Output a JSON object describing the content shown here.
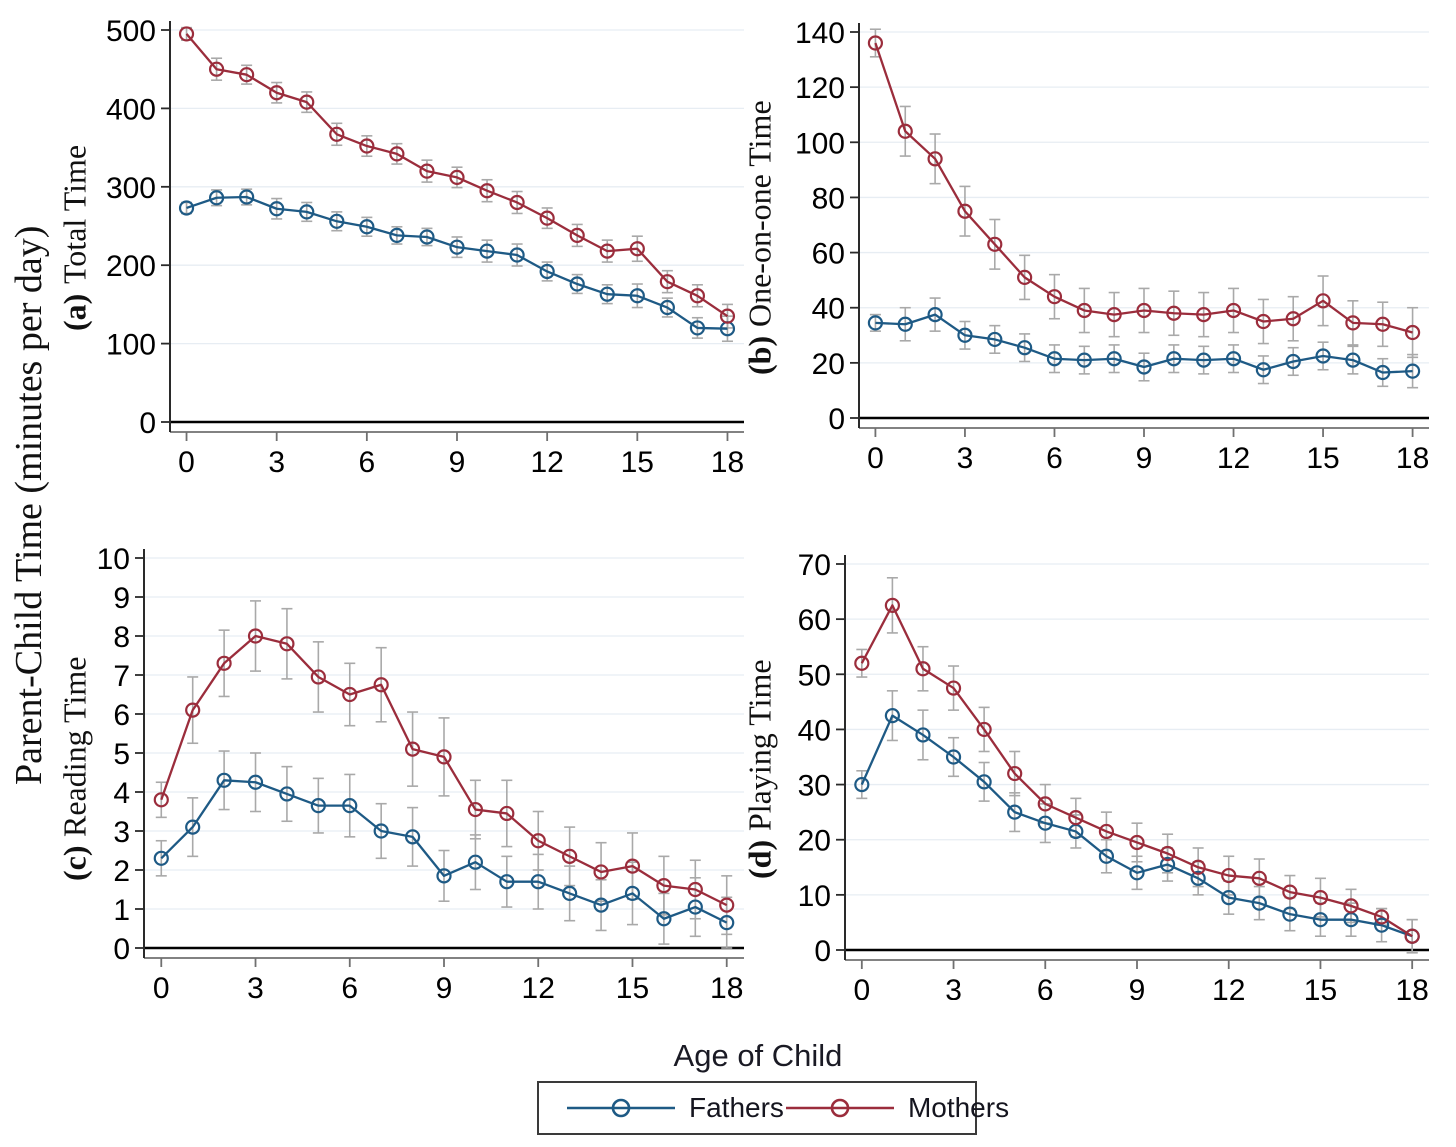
{
  "figure": {
    "outer_ylabel": "Parent-Child Time (minutes per day)",
    "xlabel": "Age of Child",
    "colors": {
      "fathers": "#1e5a85",
      "mothers": "#9b2d3c",
      "error_bar": "#a9a9a9",
      "grid": "#e7edf3",
      "zero_line": "#000000",
      "y_spine": "#2a2a2a",
      "x_spine": "#707070",
      "tick_text": "#000000"
    },
    "legend": [
      {
        "label": "Fathers",
        "series": "fathers"
      },
      {
        "label": "Mothers",
        "series": "mothers"
      }
    ],
    "legend_position": "bottom"
  },
  "chart_data": [
    {
      "type": "line",
      "panel": "a",
      "prefix": "(a)",
      "title": "Total Time",
      "x": [
        0,
        1,
        2,
        3,
        4,
        5,
        6,
        7,
        8,
        9,
        10,
        11,
        12,
        13,
        14,
        15,
        16,
        17,
        18
      ],
      "xticks": [
        0,
        3,
        6,
        9,
        12,
        15,
        18
      ],
      "ylim": [
        0,
        500
      ],
      "yticks": [
        0,
        100,
        200,
        300,
        400,
        500
      ],
      "grid": true,
      "series": [
        {
          "name": "Fathers",
          "values": [
            273,
            286,
            287,
            272,
            268,
            256,
            249,
            238,
            236,
            223,
            218,
            213,
            192,
            176,
            163,
            161,
            146,
            120,
            119
          ],
          "err": [
            7,
            10,
            10,
            13,
            12,
            12,
            12,
            11,
            11,
            13,
            14,
            14,
            12,
            12,
            12,
            15,
            12,
            13,
            16
          ]
        },
        {
          "name": "Mothers",
          "values": [
            495,
            450,
            443,
            420,
            408,
            367,
            352,
            342,
            320,
            312,
            295,
            280,
            260,
            238,
            218,
            221,
            179,
            161,
            135
          ],
          "err": [
            8,
            14,
            12,
            13,
            13,
            14,
            13,
            13,
            14,
            13,
            14,
            14,
            13,
            14,
            14,
            16,
            14,
            14,
            15
          ]
        }
      ]
    },
    {
      "type": "line",
      "panel": "b",
      "prefix": "(b)",
      "title": "One-on-one Time",
      "x": [
        0,
        1,
        2,
        3,
        4,
        5,
        6,
        7,
        8,
        9,
        10,
        11,
        12,
        13,
        14,
        15,
        16,
        17,
        18
      ],
      "xticks": [
        0,
        3,
        6,
        9,
        12,
        15,
        18
      ],
      "ylim": [
        0,
        140
      ],
      "yticks": [
        0,
        20,
        40,
        60,
        80,
        100,
        120,
        140
      ],
      "grid": true,
      "series": [
        {
          "name": "Fathers",
          "values": [
            34.5,
            34,
            37.5,
            30,
            28.5,
            25.5,
            21.5,
            21,
            21.5,
            18.5,
            21.5,
            21,
            21.5,
            17.5,
            20.5,
            22.5,
            21,
            16.5,
            17
          ],
          "err": [
            3,
            6,
            6,
            5,
            5,
            5,
            5,
            5,
            5,
            5,
            5,
            5,
            5,
            5,
            5,
            5,
            5,
            5,
            6
          ]
        },
        {
          "name": "Mothers",
          "values": [
            136,
            104,
            94,
            75,
            63,
            51,
            44,
            39,
            37.5,
            39,
            38,
            37.5,
            39,
            35,
            36,
            42.5,
            34.5,
            34,
            31
          ],
          "err": [
            5,
            9,
            9,
            9,
            9,
            8,
            8,
            8,
            8,
            8,
            8,
            8,
            8,
            8,
            8,
            9,
            8,
            8,
            9
          ]
        }
      ]
    },
    {
      "type": "line",
      "panel": "c",
      "prefix": "(c)",
      "title": "Reading Time",
      "x": [
        0,
        1,
        2,
        3,
        4,
        5,
        6,
        7,
        8,
        9,
        10,
        11,
        12,
        13,
        14,
        15,
        16,
        17,
        18
      ],
      "xticks": [
        0,
        3,
        6,
        9,
        12,
        15,
        18
      ],
      "ylim": [
        0,
        10
      ],
      "yticks": [
        0,
        1,
        2,
        3,
        4,
        5,
        6,
        7,
        8,
        9,
        10
      ],
      "grid": true,
      "series": [
        {
          "name": "Fathers",
          "values": [
            2.3,
            3.1,
            4.3,
            4.25,
            3.95,
            3.65,
            3.65,
            3,
            2.85,
            1.85,
            2.2,
            1.7,
            1.7,
            1.4,
            1.1,
            1.4,
            0.75,
            1.05,
            0.65
          ],
          "err": [
            0.45,
            0.75,
            0.75,
            0.75,
            0.7,
            0.7,
            0.8,
            0.7,
            0.75,
            0.65,
            0.7,
            0.65,
            0.7,
            0.7,
            0.65,
            0.8,
            0.65,
            0.75,
            0.65
          ]
        },
        {
          "name": "Mothers",
          "values": [
            3.8,
            6.1,
            7.3,
            8,
            7.8,
            6.95,
            6.5,
            6.75,
            5.1,
            4.9,
            3.55,
            3.45,
            2.75,
            2.35,
            1.95,
            2.1,
            1.6,
            1.5,
            1.1
          ],
          "err": [
            0.45,
            0.85,
            0.85,
            0.9,
            0.9,
            0.9,
            0.8,
            0.95,
            0.95,
            1,
            0.75,
            0.85,
            0.75,
            0.75,
            0.75,
            0.85,
            0.75,
            0.75,
            0.75
          ]
        }
      ]
    },
    {
      "type": "line",
      "panel": "d",
      "prefix": "(d)",
      "title": "Playing Time",
      "x": [
        0,
        1,
        2,
        3,
        4,
        5,
        6,
        7,
        8,
        9,
        10,
        11,
        12,
        13,
        14,
        15,
        16,
        17,
        18
      ],
      "xticks": [
        0,
        3,
        6,
        9,
        12,
        15,
        18
      ],
      "ylim": [
        0,
        70
      ],
      "yticks": [
        0,
        10,
        20,
        30,
        40,
        50,
        60,
        70
      ],
      "grid": true,
      "series": [
        {
          "name": "Fathers",
          "values": [
            30,
            42.5,
            39,
            35,
            30.5,
            25,
            23,
            21.5,
            17,
            14,
            15.5,
            13,
            9.5,
            8.5,
            6.5,
            5.5,
            5.5,
            4.5,
            2.5
          ],
          "err": [
            2.5,
            4.5,
            4.5,
            3.5,
            3.5,
            3.5,
            3.5,
            3,
            3,
            3,
            3,
            3,
            3,
            3,
            3,
            3,
            3,
            3,
            3
          ]
        },
        {
          "name": "Mothers",
          "values": [
            52,
            62.5,
            51,
            47.5,
            40,
            32,
            26.5,
            24,
            21.5,
            19.5,
            17.5,
            15,
            13.5,
            13,
            10.5,
            9.5,
            8,
            6,
            2.5
          ],
          "err": [
            2.5,
            5,
            4,
            4,
            4,
            4,
            3.5,
            3.5,
            3.5,
            3.5,
            3.5,
            3.5,
            3.5,
            3.5,
            3,
            3.5,
            3,
            1.5,
            3
          ]
        }
      ]
    }
  ]
}
